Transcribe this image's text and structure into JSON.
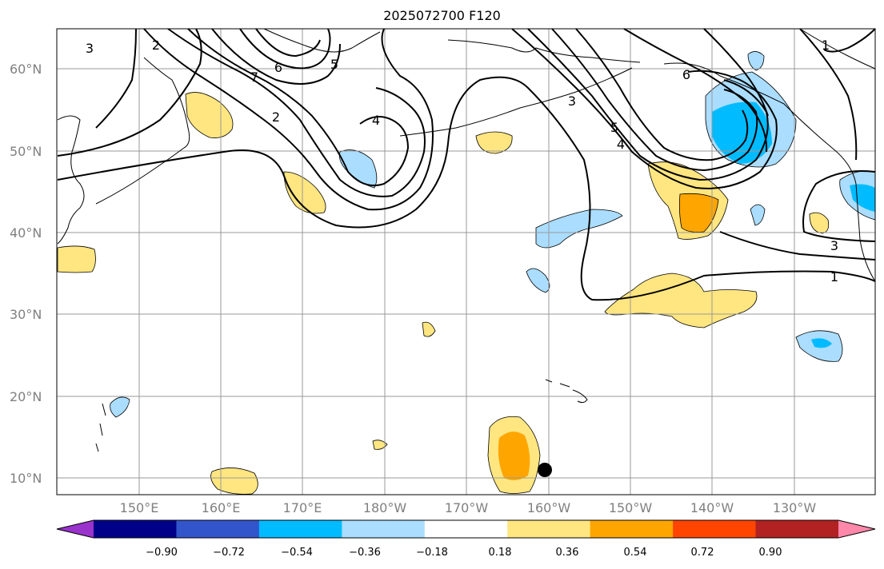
{
  "title": "2025072700 F120",
  "map": {
    "lat_labels": [
      "60°N",
      "50°N",
      "40°N",
      "30°N",
      "20°N",
      "10°N"
    ],
    "lon_labels": [
      "150°E",
      "160°E",
      "170°E",
      "180°W",
      "170°W",
      "160°W",
      "150°W",
      "140°W",
      "130°W"
    ],
    "contour_labels": [
      "3",
      "2",
      "7",
      "6",
      "5",
      "2",
      "4",
      "3",
      "5",
      "4",
      "6",
      "1",
      "3",
      "1"
    ],
    "marker": {
      "lat": 11,
      "lon": -160.5,
      "color": "#000000"
    }
  },
  "colorbar": {
    "ticks": [
      "−0.90",
      "−0.72",
      "−0.54",
      "−0.36",
      "−0.18",
      "0.18",
      "0.36",
      "0.54",
      "0.72",
      "0.90"
    ],
    "colors": [
      "#9933cc",
      "#000088",
      "#3355cc",
      "#00bbff",
      "#aaddff",
      "#ffffff",
      "#ffe680",
      "#ffa500",
      "#ff4500",
      "#b22222",
      "#ff88aa"
    ]
  },
  "chart_data": {
    "type": "heatmap",
    "title": "2025072700 F120",
    "region": {
      "lon_range": [
        140,
        240
      ],
      "lat_range": [
        8,
        65
      ]
    },
    "colorbar_levels": [
      -0.9,
      -0.72,
      -0.54,
      -0.36,
      -0.18,
      0.18,
      0.36,
      0.54,
      0.72,
      0.9
    ],
    "contour_labels_values": [
      1,
      2,
      3,
      4,
      5,
      6,
      7
    ]
  }
}
